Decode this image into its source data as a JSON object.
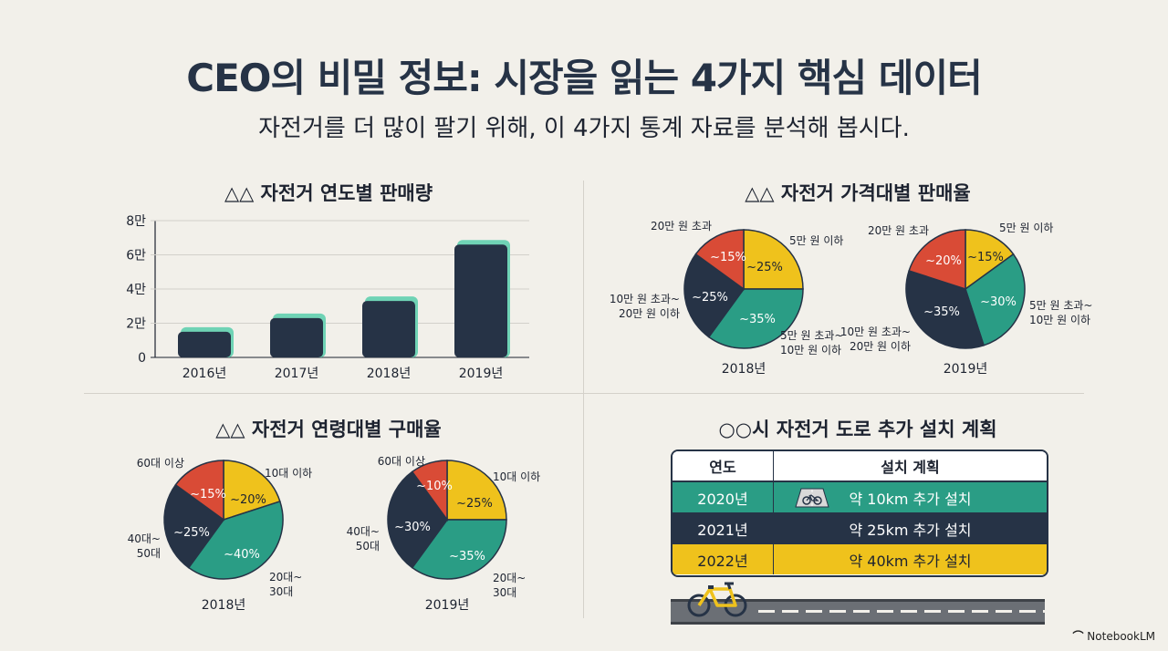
{
  "header": {
    "title": "CEO의 비밀 정보: 시장을 읽는 4가지 핵심 데이터",
    "subtitle": "자전거를 더 많이 팔기 위해, 이 4가지 통계 자료를 분석해 봅시다."
  },
  "sections": {
    "sales_title": "△△ 자전거 연도별 판매량",
    "price_title": "△△ 자전거 가격대별 판매율",
    "age_title": "△△ 자전거 연령대별 구매율",
    "road_title": "○○시 자전거 도로 추가 설치 계획"
  },
  "colors": {
    "navy": "#263346",
    "teal": "#2a9d85",
    "yellow": "#efc21c",
    "red": "#d94b36",
    "mint": "#6fd3b5"
  },
  "chart_data": [
    {
      "type": "bar",
      "title": "△△ 자전거 연도별 판매량",
      "categories": [
        "2016년",
        "2017년",
        "2018년",
        "2019년"
      ],
      "values": [
        15000,
        23000,
        33000,
        66000
      ],
      "ylim": [
        0,
        80000
      ],
      "yticks": [
        0,
        20000,
        40000,
        60000,
        80000
      ],
      "ytick_labels": [
        "0",
        "2만",
        "4만",
        "6만",
        "8만"
      ],
      "xlabel": "",
      "ylabel": ""
    },
    {
      "type": "pie",
      "title": "△△ 자전거 가격대별 판매율",
      "charts": [
        {
          "label": "2018년",
          "slices": [
            {
              "name": "5만 원 이하",
              "value": 25,
              "value_label": "~25%",
              "color": "#efc21c"
            },
            {
              "name": "5만 원 초과~ 10만 원 이하",
              "value": 35,
              "value_label": "~35%",
              "color": "#2a9d85"
            },
            {
              "name": "10만 원 초과~ 20만 원 이하",
              "value": 25,
              "value_label": "~25%",
              "color": "#263346"
            },
            {
              "name": "20만 원 초과",
              "value": 15,
              "value_label": "~15%",
              "color": "#d94b36"
            }
          ]
        },
        {
          "label": "2019년",
          "slices": [
            {
              "name": "5만 원 이하",
              "value": 15,
              "value_label": "~15%",
              "color": "#efc21c"
            },
            {
              "name": "5만 원 초과~ 10만 원 이하",
              "value": 30,
              "value_label": "~30%",
              "color": "#2a9d85"
            },
            {
              "name": "10만 원 초과~ 20만 원 이하",
              "value": 35,
              "value_label": "~35%",
              "color": "#263346"
            },
            {
              "name": "20만 원 초과",
              "value": 20,
              "value_label": "~20%",
              "color": "#d94b36"
            }
          ]
        }
      ]
    },
    {
      "type": "pie",
      "title": "△△ 자전거 연령대별 구매율",
      "charts": [
        {
          "label": "2018년",
          "slices": [
            {
              "name": "10대 이하",
              "value": 20,
              "value_label": "~20%",
              "color": "#efc21c"
            },
            {
              "name": "20대~30대",
              "value": 40,
              "value_label": "~40%",
              "color": "#2a9d85"
            },
            {
              "name": "40대~50대",
              "value": 25,
              "value_label": "~25%",
              "color": "#263346"
            },
            {
              "name": "60대 이상",
              "value": 15,
              "value_label": "~15%",
              "color": "#d94b36"
            }
          ]
        },
        {
          "label": "2019년",
          "slices": [
            {
              "name": "10대 이하",
              "value": 25,
              "value_label": "~25%",
              "color": "#efc21c"
            },
            {
              "name": "20대~30대",
              "value": 35,
              "value_label": "~35%",
              "color": "#2a9d85"
            },
            {
              "name": "40대~50대",
              "value": 30,
              "value_label": "~30%",
              "color": "#263346"
            },
            {
              "name": "60대 이상",
              "value": 10,
              "value_label": "~10%",
              "color": "#d94b36"
            }
          ]
        }
      ]
    },
    {
      "type": "table",
      "title": "○○시 자전거 도로 추가 설치 계획",
      "columns": [
        "연도",
        "설치 계획"
      ],
      "rows": [
        [
          "2020년",
          "약 10km 추가 설치"
        ],
        [
          "2021년",
          "약 25km 추가 설치"
        ],
        [
          "2022년",
          "약 40km 추가 설치"
        ]
      ]
    }
  ],
  "icons": {
    "lane": "bike-lane-icon",
    "bicycle": "bicycle-icon",
    "brand": "notebooklm-logo-icon"
  },
  "footer": {
    "brand": "NotebookLM"
  }
}
